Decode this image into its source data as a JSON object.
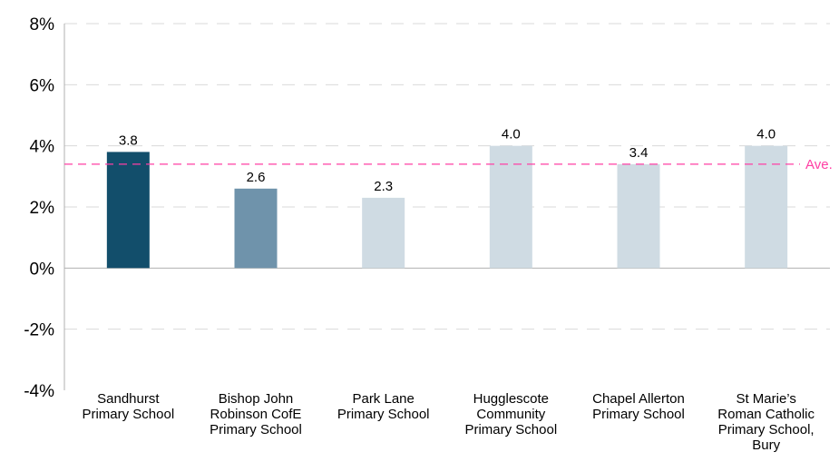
{
  "chart_data": {
    "type": "bar",
    "categories": [
      [
        "Sandhurst",
        "Primary School"
      ],
      [
        "Bishop John",
        "Robinson CofE",
        "Primary School"
      ],
      [
        "Park Lane",
        "Primary School"
      ],
      [
        "Hugglescote",
        "Community",
        "Primary School"
      ],
      [
        "Chapel Allerton",
        "Primary School"
      ],
      [
        "St Marie’s",
        "Roman Catholic",
        "Primary School,",
        "Bury"
      ]
    ],
    "values": [
      3.8,
      2.6,
      2.3,
      4.0,
      3.4,
      4.0
    ],
    "data_labels": [
      "3.8",
      "2.6",
      "2.3",
      "4.0",
      "3.4",
      "4.0"
    ],
    "bar_colors": [
      "#124e6b",
      "#6f93ab",
      "#cfdbe3",
      "#cfdbe3",
      "#cfdbe3",
      "#cfdbe3"
    ],
    "ylim": [
      -4,
      8
    ],
    "yticks": [
      8,
      6,
      4,
      2,
      0,
      -2,
      -4
    ],
    "ytick_labels": [
      "8%",
      "6%",
      "4%",
      "2%",
      "0%",
      "-2%",
      "-4%"
    ],
    "grid": true,
    "average": {
      "value": 3.4,
      "label": "Ave.",
      "color": "#ff3fa4"
    },
    "title": "",
    "xlabel": "",
    "ylabel": ""
  }
}
